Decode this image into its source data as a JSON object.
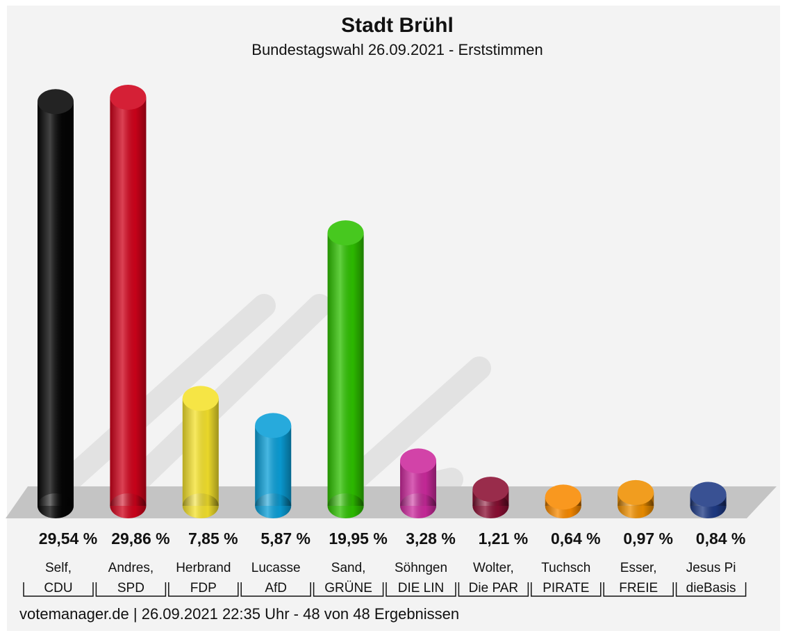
{
  "chart_data": {
    "type": "bar",
    "title": "Stadt Brühl",
    "subtitle": "Bundestagswahl 26.09.2021  - Erststimmen",
    "categories": [
      "Self,",
      "Andres,",
      "Herbrand",
      "Lucasse",
      "Sand,",
      "Söhngen",
      "Wolter,",
      "Tuchsch",
      "Esser,",
      "Jesus Pi"
    ],
    "parties": [
      "CDU",
      "SPD",
      "FDP",
      "AfD",
      "GRÜNE",
      "DIE LIN",
      "Die PAR",
      "PIRATE",
      "FREIE",
      "dieBasis"
    ],
    "values": [
      29.54,
      29.86,
      7.85,
      5.87,
      19.95,
      3.28,
      1.21,
      0.64,
      0.97,
      0.84
    ],
    "value_labels": [
      "29,54 %",
      "29,86 %",
      "7,85 %",
      "5,87 %",
      "19,95 %",
      "3,28 %",
      "1,21 %",
      "0,64 %",
      "0,97 %",
      "0,84 %"
    ],
    "colors": [
      "#050505",
      "#d0021b",
      "#f5e22c",
      "#0a9fd8",
      "#2ec100",
      "#cc2a9d",
      "#8b0f33",
      "#f98a00",
      "#f09000",
      "#1e3a85"
    ],
    "footer": "votemanager.de | 26.09.2021 22:35 Uhr - 48 von 48 Ergebnissen"
  }
}
